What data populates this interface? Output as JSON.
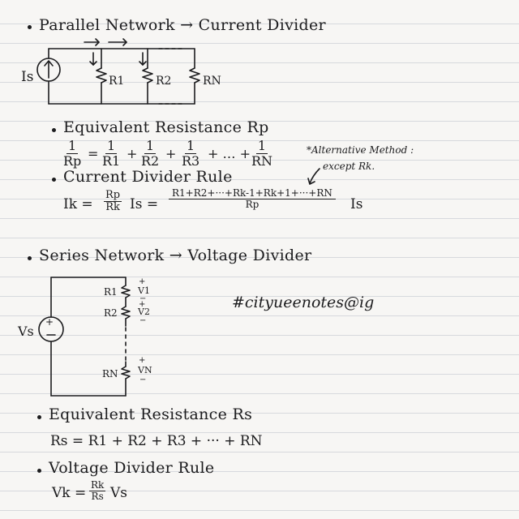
{
  "parallel": {
    "heading": "Parallel Network → Current Divider",
    "circuit": {
      "source": "Is",
      "r1": "R1",
      "r2": "R2",
      "rn": "RN"
    },
    "eq_res_heading": "Equivalent Resistance Rp",
    "eq_res": {
      "lhs_num": "1",
      "lhs_den": "Rp",
      "t1_den": "R1",
      "t2_den": "R2",
      "t3_den": "R3",
      "tn_den": "RN",
      "dots": "+ … +",
      "one": "1"
    },
    "alt_note": {
      "line1": "*Alternative Method :",
      "line2": "except Rk."
    },
    "cdr_heading": "Current Divider Rule",
    "cdr": {
      "lhs": "Ik =",
      "f1_num": "Rp",
      "f1_den": "Rk",
      "f1_tail": "Is =",
      "f2_num": "R1+R2+···+Rk-1+Rk+1+···+RN",
      "f2_den": "Rp",
      "f2_tail": "Is"
    }
  },
  "series": {
    "heading": "Series Network → Voltage Divider",
    "circuit": {
      "source": "Vs",
      "r1": "R1",
      "r2": "R2",
      "rn": "RN",
      "v1": "V1",
      "v2": "V2",
      "vn": "VN"
    },
    "hashtag": "#cityueenotes@ig",
    "eq_res_heading": "Equivalent Resistance Rs",
    "eq_res": "Rs = R1 + R2 + R3 + ··· + RN",
    "vdr_heading": "Voltage Divider Rule",
    "vdr": {
      "lhs": "Vk =",
      "num": "Rk",
      "den": "Rs",
      "tail": "Vs"
    }
  }
}
